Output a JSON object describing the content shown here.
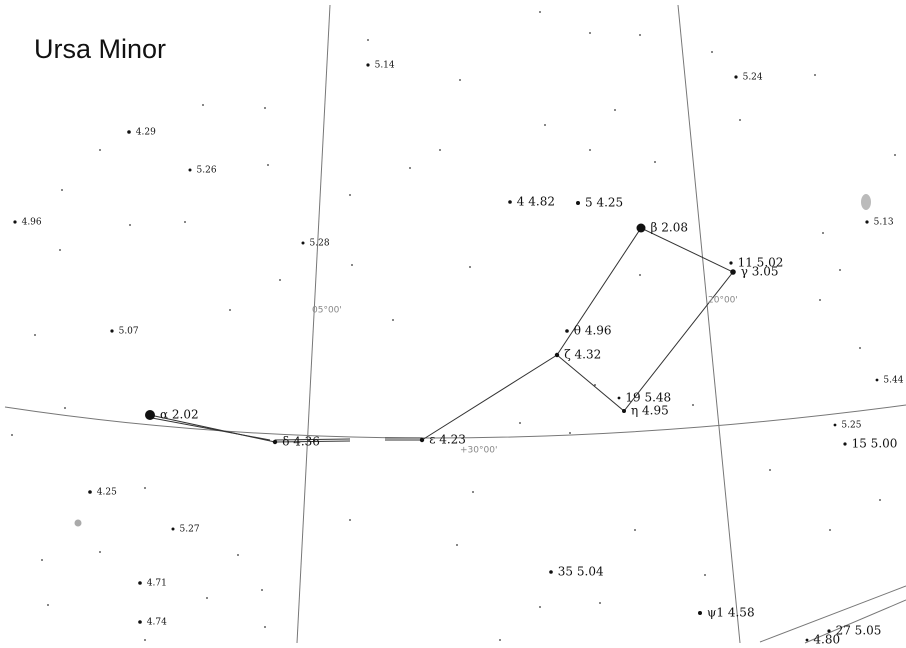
{
  "title": "Ursa Minor",
  "stars": [
    "5.14",
    "5.24",
    "4.29",
    "5.26",
    "4.96",
    "4 4.82",
    "5 4.25",
    "β 2.08",
    "5.28",
    "5.13",
    "11 5.02",
    "γ 3.05",
    "5.07",
    "θ 4.96",
    "ζ 4.32",
    "5.44",
    "19 5.48",
    "η 4.95",
    "α 2.02",
    "δ 4.36",
    "ε 4.23",
    "5.25",
    "15 5.00",
    "4.25",
    "5.27",
    "35 5.04",
    "4.71",
    "ψ1 4.58",
    "4.74",
    "27 5.05",
    "4.80"
  ],
  "grid_labels": [
    "05°00'",
    "20°00'",
    "+30°00'"
  ]
}
